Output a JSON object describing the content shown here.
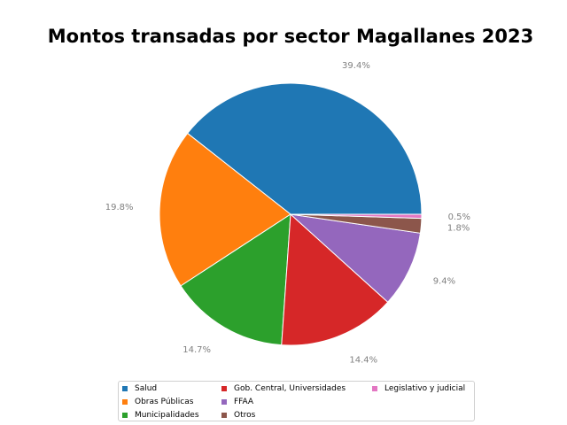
{
  "chart_data": {
    "type": "pie",
    "title": "Montos transadas por sector Magallanes 2023",
    "slices": [
      {
        "name": "Salud",
        "value": 39.4,
        "label": "39.4%",
        "color": "#1f77b4"
      },
      {
        "name": "Obras Públicas",
        "value": 19.8,
        "label": "19.8%",
        "color": "#ff7f0e"
      },
      {
        "name": "Municipalidades",
        "value": 14.7,
        "label": "14.7%",
        "color": "#2ca02c"
      },
      {
        "name": "Gob. Central, Universidades",
        "value": 14.4,
        "label": "14.4%",
        "color": "#d62728"
      },
      {
        "name": "FFAA",
        "value": 9.4,
        "label": "9.4%",
        "color": "#9467bd"
      },
      {
        "name": "Otros",
        "value": 1.8,
        "label": "1.8%",
        "color": "#8c564b"
      },
      {
        "name": "Legislativo y judicial",
        "value": 0.5,
        "label": "0.5%",
        "color": "#e377c2"
      }
    ],
    "start_angle_deg": 0,
    "direction": "counterclockwise",
    "legend_position": "bottom-center"
  }
}
